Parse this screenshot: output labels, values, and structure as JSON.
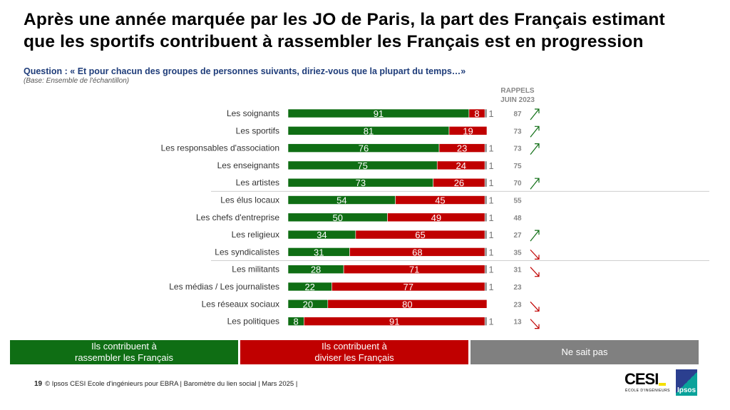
{
  "title_lines": [
    "Après une année marquée par les JO de Paris, la part des Français estimant",
    "que les sportifs contribuent à rassembler les Français est en progression"
  ],
  "question": "Question : « Et pour chacun des groupes de personnes suivants, diriez-vous que la plupart du temps…»",
  "base": "(Base: Ensemble de l'échantillon)",
  "rappels_header": [
    "RAPPELS",
    "JUIN 2023"
  ],
  "colors": {
    "rassembler": "#0f6e14",
    "diviser": "#c00000",
    "nsp": "#808080"
  },
  "chart_data": {
    "type": "bar",
    "orientation": "horizontal-stacked-100",
    "categories": [
      "Les soignants",
      "Les sportifs",
      "Les responsables d'association",
      "Les enseignants",
      "Les artistes",
      "Les élus locaux",
      "Les chefs d'entreprise",
      "Les religieux",
      "Les syndicalistes",
      "Les militants",
      "Les médias / Les journalistes",
      "Les réseaux sociaux",
      "Les politiques"
    ],
    "series": [
      {
        "name": "Ils contribuent à rassembler les Français",
        "values": [
          91,
          81,
          76,
          75,
          73,
          54,
          50,
          34,
          31,
          28,
          22,
          20,
          8
        ]
      },
      {
        "name": "Ils contribuent à diviser les Français",
        "values": [
          8,
          19,
          23,
          24,
          26,
          45,
          49,
          65,
          68,
          71,
          77,
          80,
          91
        ]
      },
      {
        "name": "Ne sait pas",
        "values": [
          1,
          null,
          1,
          1,
          1,
          1,
          1,
          1,
          1,
          1,
          1,
          null,
          1
        ]
      }
    ],
    "rappels_juin_2023": [
      87,
      73,
      73,
      75,
      70,
      55,
      48,
      27,
      35,
      31,
      23,
      23,
      13
    ],
    "trend": [
      "up",
      "up",
      "up",
      null,
      "up",
      null,
      null,
      "up",
      "down",
      "down",
      null,
      "down",
      "down"
    ],
    "group_separators_after": [
      4,
      8
    ],
    "legend_placement": "bottom"
  },
  "legend": [
    "Ils contribuent à\nrassembler les Français",
    "Ils contribuent à\ndiviser les Français",
    "Ne sait pas"
  ],
  "footer": {
    "page": "19",
    "text": "© Ipsos CESI Ecole d'ingénieurs pour EBRA | Baromètre du lien social | Mars 2025 |"
  },
  "logos": {
    "cesi": "CESI",
    "cesi_sub": "ÉCOLE D'INGÉNIEURS",
    "ipsos": "Ipsos"
  }
}
